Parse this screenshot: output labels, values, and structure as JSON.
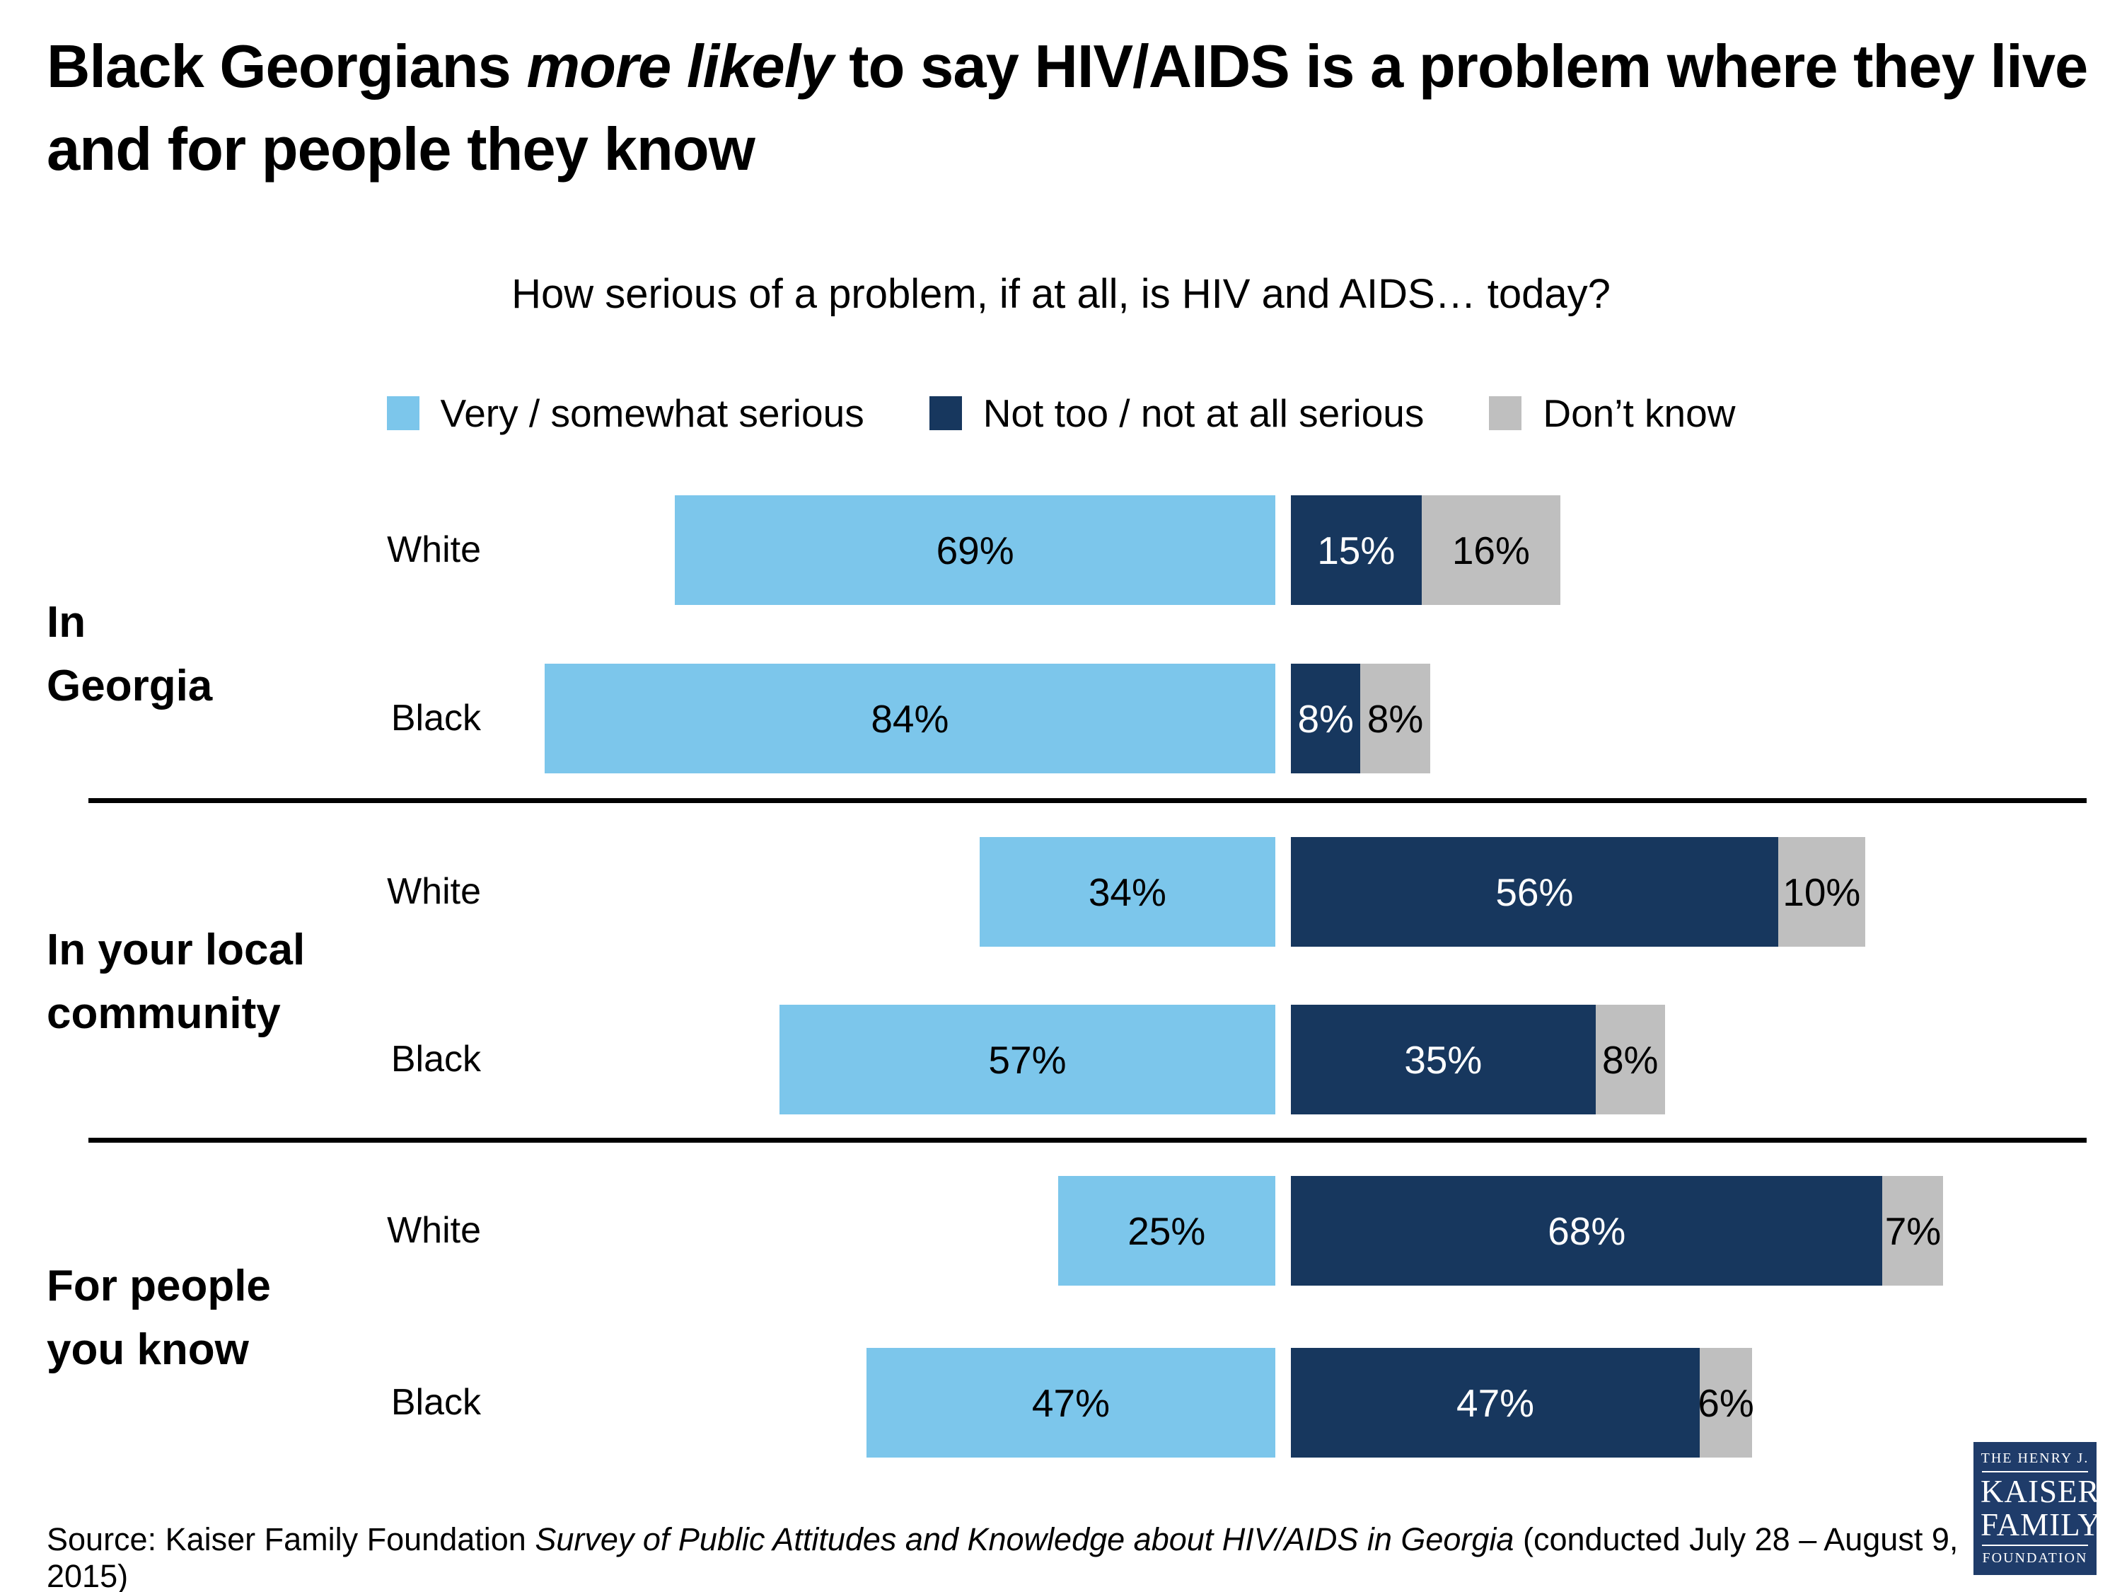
{
  "title": {
    "prefix": "Black Georgians ",
    "emphasis": "more likely",
    "suffix": " to say HIV/AIDS is a problem where they live and for people they know"
  },
  "subtitle": "How serious of a problem, if at all, is HIV and AIDS… today?",
  "legend": {
    "items": [
      {
        "label": "Very / somewhat serious",
        "color": "#7cc6eb"
      },
      {
        "label": "Not too / not at all serious",
        "color": "#17375e"
      },
      {
        "label": "Don’t know",
        "color": "#bfbfbf"
      }
    ]
  },
  "chart_data": {
    "type": "bar",
    "orientation": "horizontal",
    "variant": "stacked, aligned at boundary between first and second series",
    "unit": "percent",
    "series": [
      {
        "name": "Very / somewhat serious",
        "color": "#7cc6eb",
        "text_color": "#000000"
      },
      {
        "name": "Not too / not at all serious",
        "color": "#17375e",
        "text_color": "#ffffff"
      },
      {
        "name": "Don’t know",
        "color": "#bfbfbf",
        "text_color": "#000000"
      }
    ],
    "groups": [
      {
        "label": "In Georgia",
        "label_lines": [
          "In",
          "Georgia"
        ],
        "rows": [
          {
            "category": "White",
            "values": [
              69,
              15,
              16
            ]
          },
          {
            "category": "Black",
            "values": [
              84,
              8,
              8
            ]
          }
        ]
      },
      {
        "label": "In your local community",
        "label_lines": [
          "In your local",
          "community"
        ],
        "rows": [
          {
            "category": "White",
            "values": [
              34,
              56,
              10
            ]
          },
          {
            "category": "Black",
            "values": [
              57,
              35,
              8
            ]
          }
        ]
      },
      {
        "label": "For people you know",
        "label_lines": [
          "For people",
          "you know"
        ],
        "rows": [
          {
            "category": "White",
            "values": [
              25,
              68,
              7
            ]
          },
          {
            "category": "Black",
            "values": [
              47,
              47,
              6
            ]
          }
        ]
      }
    ],
    "value_label_format": "{value}%",
    "legend_position": "top",
    "grid": false
  },
  "source": {
    "prefix": "Source: Kaiser Family Foundation ",
    "italic": "Survey of Public Attitudes and Knowledge about HIV/AIDS in Georgia",
    "suffix": " (conducted July 28 – August 9, 2015)"
  },
  "logo": {
    "line1": "THE HENRY J.",
    "line2": "KAISER",
    "line3": "FAMILY",
    "line4": "FOUNDATION",
    "bg_color": "#1f3c6a"
  }
}
